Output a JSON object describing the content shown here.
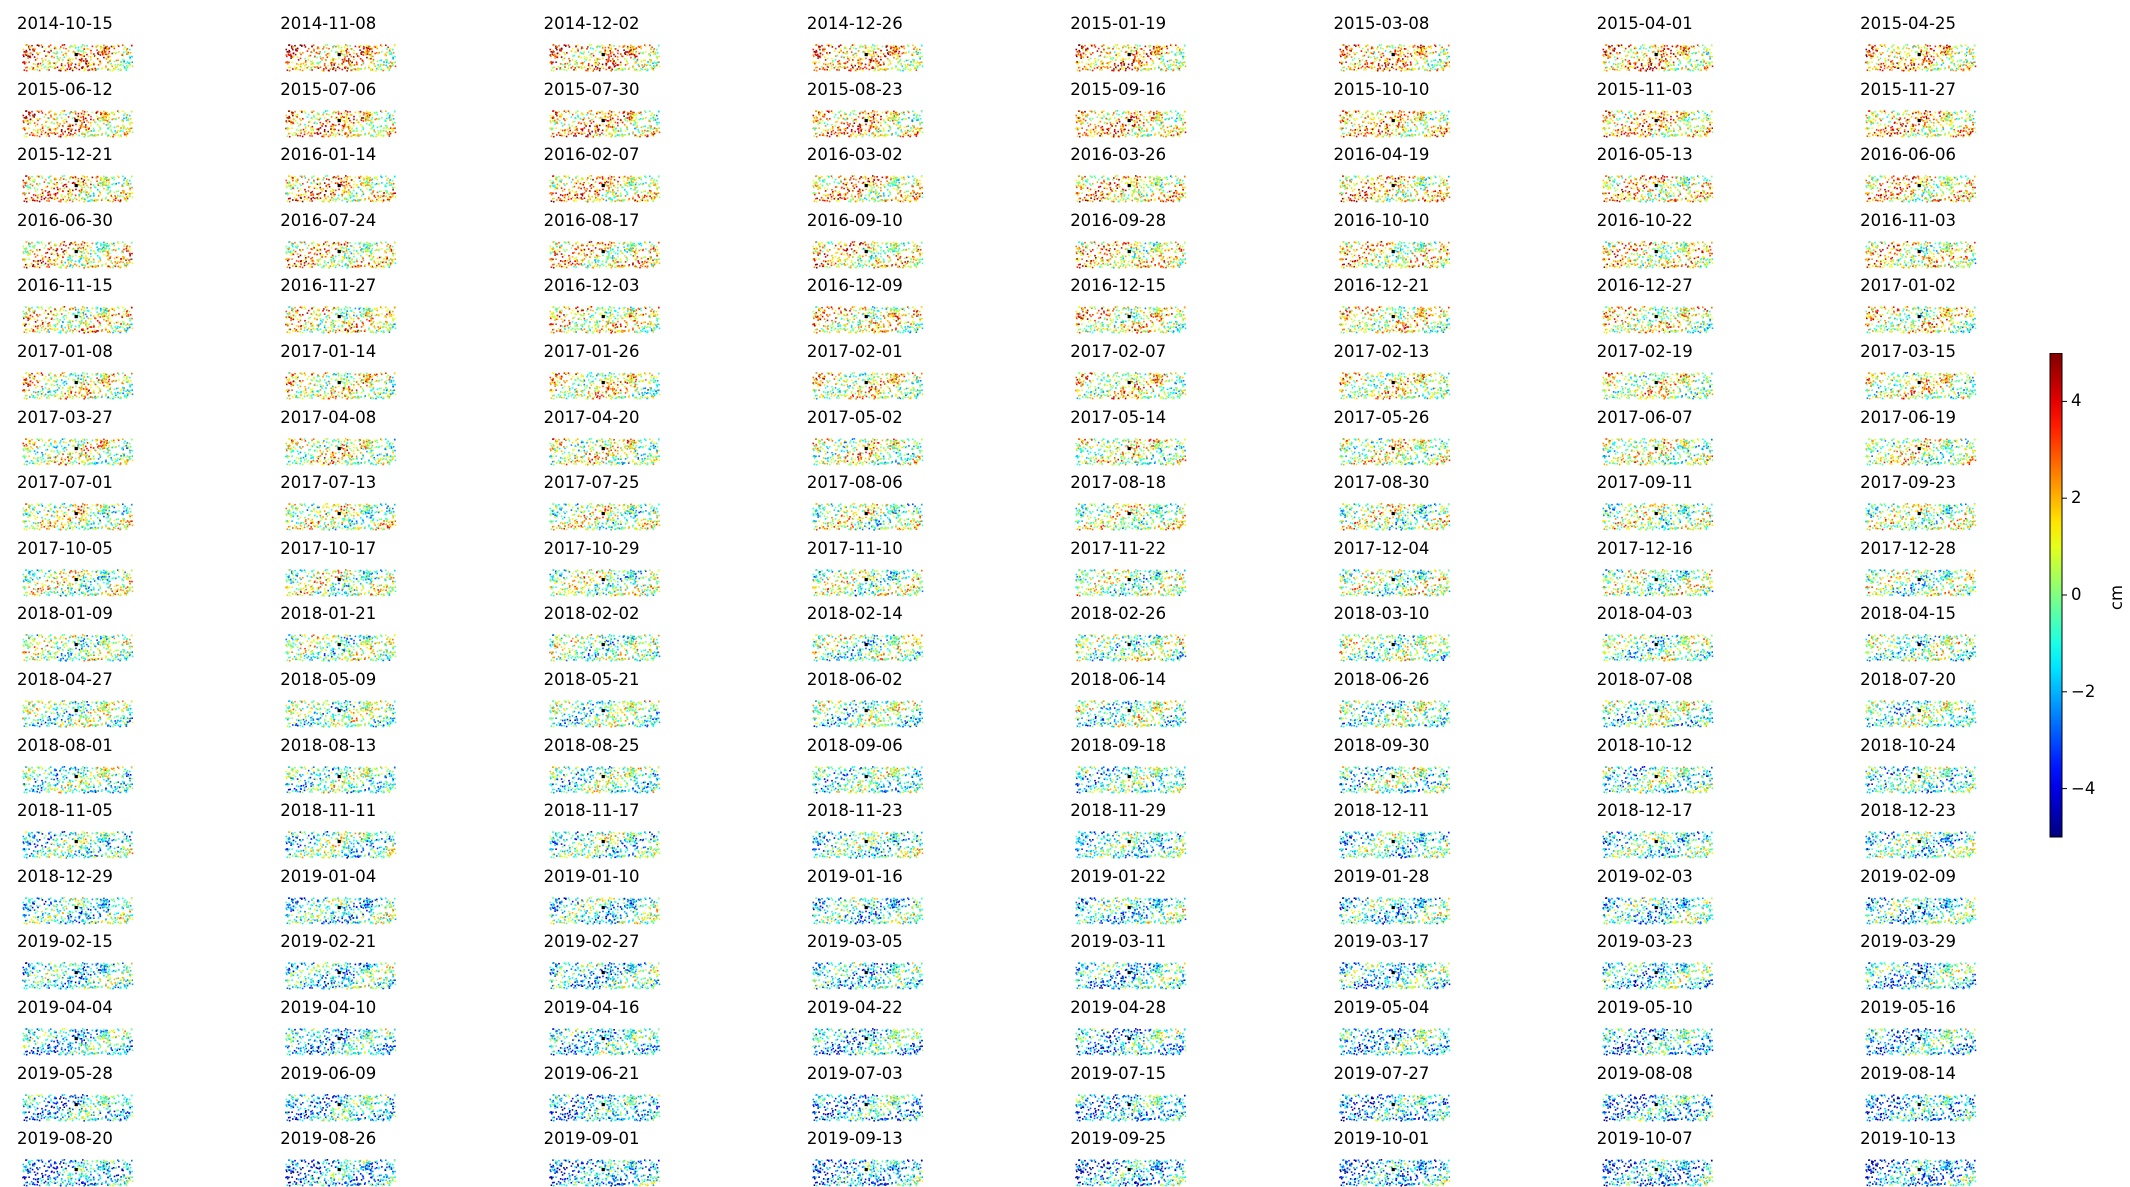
{
  "chart_data": {
    "type": "heatmap",
    "description_of_panels": "small-multiple scatter maps of displacement per acquisition date",
    "colormap": "jet",
    "colorbar": {
      "label": "cm",
      "range": [
        -5,
        5
      ],
      "ticks": [
        4,
        2,
        0,
        -2,
        -4
      ],
      "tick_labels": [
        "4",
        "2",
        "0",
        "−2",
        "−4"
      ]
    },
    "grid": {
      "rows": 18,
      "cols": 8
    },
    "dates": [
      "2014-10-15",
      "2014-11-08",
      "2014-12-02",
      "2014-12-26",
      "2015-01-19",
      "2015-03-08",
      "2015-04-01",
      "2015-04-25",
      "2015-06-12",
      "2015-07-06",
      "2015-07-30",
      "2015-08-23",
      "2015-09-16",
      "2015-10-10",
      "2015-11-03",
      "2015-11-27",
      "2015-12-21",
      "2016-01-14",
      "2016-02-07",
      "2016-03-02",
      "2016-03-26",
      "2016-04-19",
      "2016-05-13",
      "2016-06-06",
      "2016-06-30",
      "2016-07-24",
      "2016-08-17",
      "2016-09-10",
      "2016-09-28",
      "2016-10-10",
      "2016-10-22",
      "2016-11-03",
      "2016-11-15",
      "2016-11-27",
      "2016-12-03",
      "2016-12-09",
      "2016-12-15",
      "2016-12-21",
      "2016-12-27",
      "2017-01-02",
      "2017-01-08",
      "2017-01-14",
      "2017-01-26",
      "2017-02-01",
      "2017-02-07",
      "2017-02-13",
      "2017-02-19",
      "2017-03-15",
      "2017-03-27",
      "2017-04-08",
      "2017-04-20",
      "2017-05-02",
      "2017-05-14",
      "2017-05-26",
      "2017-06-07",
      "2017-06-19",
      "2017-07-01",
      "2017-07-13",
      "2017-07-25",
      "2017-08-06",
      "2017-08-18",
      "2017-08-30",
      "2017-09-11",
      "2017-09-23",
      "2017-10-05",
      "2017-10-17",
      "2017-10-29",
      "2017-11-10",
      "2017-11-22",
      "2017-12-04",
      "2017-12-16",
      "2017-12-28",
      "2018-01-09",
      "2018-01-21",
      "2018-02-02",
      "2018-02-14",
      "2018-02-26",
      "2018-03-10",
      "2018-04-03",
      "2018-04-15",
      "2018-04-27",
      "2018-05-09",
      "2018-05-21",
      "2018-06-02",
      "2018-06-14",
      "2018-06-26",
      "2018-07-08",
      "2018-07-20",
      "2018-08-01",
      "2018-08-13",
      "2018-08-25",
      "2018-09-06",
      "2018-09-18",
      "2018-09-30",
      "2018-10-12",
      "2018-10-24",
      "2018-11-05",
      "2018-11-11",
      "2018-11-17",
      "2018-11-23",
      "2018-11-29",
      "2018-12-11",
      "2018-12-17",
      "2018-12-23",
      "2018-12-29",
      "2019-01-04",
      "2019-01-10",
      "2019-01-16",
      "2019-01-22",
      "2019-01-28",
      "2019-02-03",
      "2019-02-09",
      "2019-02-15",
      "2019-02-21",
      "2019-02-27",
      "2019-03-05",
      "2019-03-11",
      "2019-03-17",
      "2019-03-23",
      "2019-03-29",
      "2019-04-04",
      "2019-04-10",
      "2019-04-16",
      "2019-04-22",
      "2019-04-28",
      "2019-05-04",
      "2019-05-10",
      "2019-05-16",
      "2019-05-28",
      "2019-06-09",
      "2019-06-21",
      "2019-07-03",
      "2019-07-15",
      "2019-07-27",
      "2019-08-08",
      "2019-08-14",
      "2019-08-20",
      "2019-08-26",
      "2019-09-01",
      "2019-09-13",
      "2019-09-25",
      "2019-10-01",
      "2019-10-07",
      "2019-10-13"
    ],
    "reference_point_color": "#000000",
    "axes_visible": false
  }
}
